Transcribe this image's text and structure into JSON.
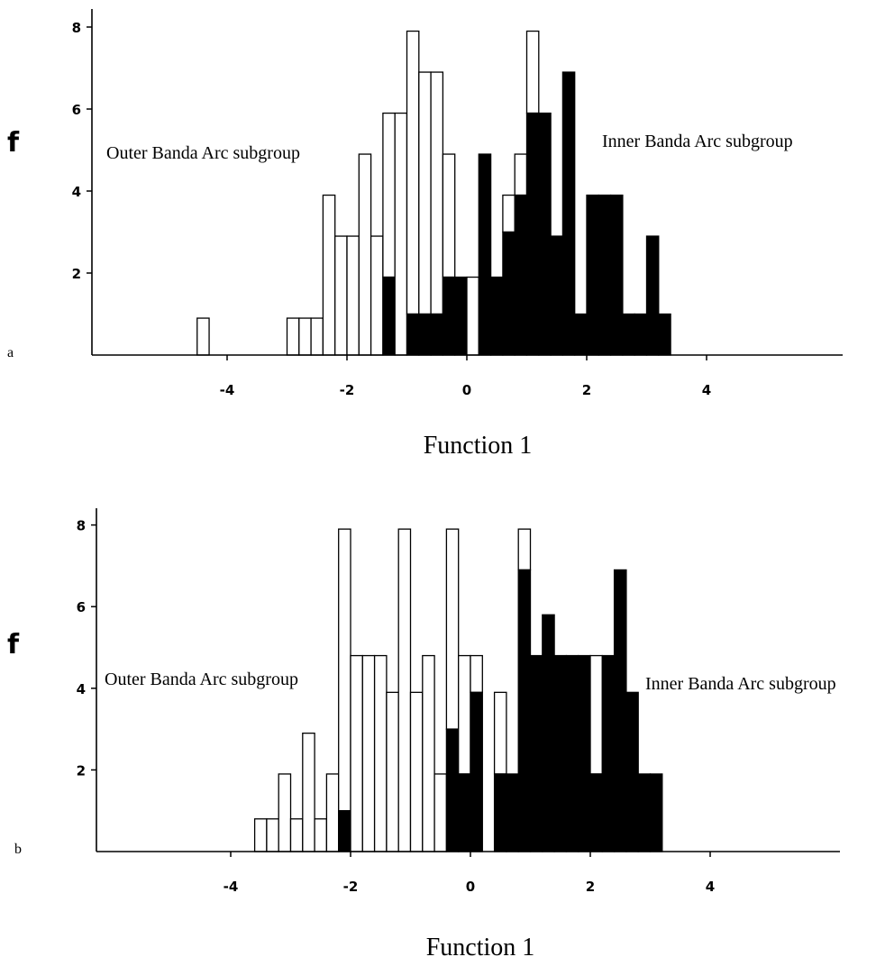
{
  "chart_data": [
    {
      "type": "bar",
      "panel_letter": "a",
      "xlabel": "Function 1",
      "ylabel": "f",
      "xlim": [
        -6.2,
        6.7
      ],
      "ylim": [
        0,
        8.4
      ],
      "x_ticks": [
        "-4",
        "-2",
        "0",
        "2",
        "4"
      ],
      "y_ticks": [
        "2",
        "4",
        "6",
        "8"
      ],
      "bin_width": 0.2,
      "annotations": [
        "Outer Banda Arc subgroup",
        "Inner Banda Arc subgroup"
      ],
      "series_colors": {
        "outer": "#ffffff",
        "inner": "#000000"
      },
      "bins": [
        {
          "x": -4.4,
          "inner": 0,
          "total": 0.9
        },
        {
          "x": -2.9,
          "inner": 0,
          "total": 0.9
        },
        {
          "x": -2.7,
          "inner": 0,
          "total": 0.9
        },
        {
          "x": -2.5,
          "inner": 0,
          "total": 0.9
        },
        {
          "x": -2.3,
          "inner": 0,
          "total": 3.9
        },
        {
          "x": -2.1,
          "inner": 0,
          "total": 2.9
        },
        {
          "x": -1.9,
          "inner": 0,
          "total": 2.9
        },
        {
          "x": -1.7,
          "inner": 0,
          "total": 4.9
        },
        {
          "x": -1.5,
          "inner": 0,
          "total": 2.9
        },
        {
          "x": -1.3,
          "inner": 1.9,
          "total": 5.9
        },
        {
          "x": -1.1,
          "inner": 0,
          "total": 5.9
        },
        {
          "x": -0.9,
          "inner": 1.0,
          "total": 7.9
        },
        {
          "x": -0.7,
          "inner": 1.0,
          "total": 6.9
        },
        {
          "x": -0.5,
          "inner": 1.0,
          "total": 6.9
        },
        {
          "x": -0.3,
          "inner": 1.9,
          "total": 4.9
        },
        {
          "x": -0.1,
          "inner": 1.9,
          "total": 1.9
        },
        {
          "x": 0.1,
          "inner": 0,
          "total": 1.9
        },
        {
          "x": 0.3,
          "inner": 4.9,
          "total": 4.9
        },
        {
          "x": 0.5,
          "inner": 1.9,
          "total": 1.9
        },
        {
          "x": 0.7,
          "inner": 3.0,
          "total": 3.9
        },
        {
          "x": 0.9,
          "inner": 3.9,
          "total": 4.9
        },
        {
          "x": 1.1,
          "inner": 5.9,
          "total": 7.9
        },
        {
          "x": 1.3,
          "inner": 5.9,
          "total": 5.9
        },
        {
          "x": 1.5,
          "inner": 2.9,
          "total": 2.9
        },
        {
          "x": 1.7,
          "inner": 6.9,
          "total": 6.9
        },
        {
          "x": 1.9,
          "inner": 1.0,
          "total": 1.0
        },
        {
          "x": 2.1,
          "inner": 3.9,
          "total": 3.9
        },
        {
          "x": 2.3,
          "inner": 3.9,
          "total": 3.9
        },
        {
          "x": 2.5,
          "inner": 3.9,
          "total": 3.9
        },
        {
          "x": 2.7,
          "inner": 1.0,
          "total": 1.0
        },
        {
          "x": 2.9,
          "inner": 1.0,
          "total": 1.0
        },
        {
          "x": 3.1,
          "inner": 2.9,
          "total": 2.9
        },
        {
          "x": 3.3,
          "inner": 1.0,
          "total": 1.0
        }
      ]
    },
    {
      "type": "bar",
      "panel_letter": "b",
      "xlabel": "Function 1",
      "ylabel": "f",
      "xlim": [
        -6.2,
        6.7
      ],
      "ylim": [
        0,
        8.4
      ],
      "x_ticks": [
        "-4",
        "-2",
        "0",
        "2",
        "4"
      ],
      "y_ticks": [
        "2",
        "4",
        "6",
        "8"
      ],
      "bin_width": 0.2,
      "annotations": [
        "Outer Banda Arc subgroup",
        "Inner Banda Arc subgroup"
      ],
      "series_colors": {
        "outer": "#ffffff",
        "inner": "#000000"
      },
      "bins": [
        {
          "x": -3.5,
          "inner": 0,
          "total": 0.8
        },
        {
          "x": -3.3,
          "inner": 0,
          "total": 0.8
        },
        {
          "x": -3.1,
          "inner": 0,
          "total": 1.9
        },
        {
          "x": -2.9,
          "inner": 0,
          "total": 0.8
        },
        {
          "x": -2.7,
          "inner": 0,
          "total": 2.9
        },
        {
          "x": -2.5,
          "inner": 0,
          "total": 0.8
        },
        {
          "x": -2.3,
          "inner": 0,
          "total": 1.9
        },
        {
          "x": -2.1,
          "inner": 1.0,
          "total": 7.9
        },
        {
          "x": -1.9,
          "inner": 0,
          "total": 4.8
        },
        {
          "x": -1.7,
          "inner": 0,
          "total": 4.8
        },
        {
          "x": -1.5,
          "inner": 0,
          "total": 4.8
        },
        {
          "x": -1.3,
          "inner": 0,
          "total": 3.9
        },
        {
          "x": -1.1,
          "inner": 0,
          "total": 7.9
        },
        {
          "x": -0.9,
          "inner": 0,
          "total": 3.9
        },
        {
          "x": -0.7,
          "inner": 0,
          "total": 4.8
        },
        {
          "x": -0.5,
          "inner": 0,
          "total": 1.9
        },
        {
          "x": -0.3,
          "inner": 3.0,
          "total": 7.9
        },
        {
          "x": -0.1,
          "inner": 1.9,
          "total": 4.8
        },
        {
          "x": 0.1,
          "inner": 3.9,
          "total": 4.8
        },
        {
          "x": 0.5,
          "inner": 1.9,
          "total": 3.9
        },
        {
          "x": 0.7,
          "inner": 1.9,
          "total": 1.9
        },
        {
          "x": 0.9,
          "inner": 6.9,
          "total": 7.9
        },
        {
          "x": 1.1,
          "inner": 4.8,
          "total": 4.8
        },
        {
          "x": 1.3,
          "inner": 5.8,
          "total": 5.8
        },
        {
          "x": 1.5,
          "inner": 4.8,
          "total": 4.8
        },
        {
          "x": 1.7,
          "inner": 4.8,
          "total": 4.8
        },
        {
          "x": 1.9,
          "inner": 4.8,
          "total": 4.8
        },
        {
          "x": 2.1,
          "inner": 1.9,
          "total": 4.8
        },
        {
          "x": 2.3,
          "inner": 4.8,
          "total": 4.8
        },
        {
          "x": 2.5,
          "inner": 6.9,
          "total": 6.9
        },
        {
          "x": 2.7,
          "inner": 3.9,
          "total": 3.9
        },
        {
          "x": 2.9,
          "inner": 1.9,
          "total": 1.9
        },
        {
          "x": 3.1,
          "inner": 1.9,
          "total": 1.9
        }
      ]
    }
  ]
}
